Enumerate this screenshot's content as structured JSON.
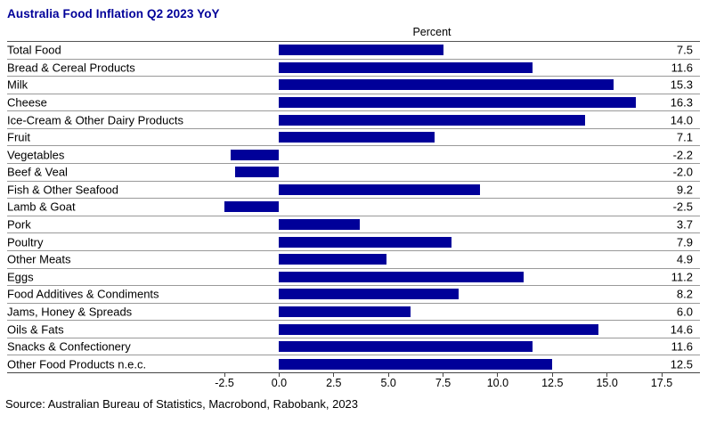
{
  "title": "Australia Food Inflation Q2 2023 YoY",
  "source": "Source: Australian Bureau of Statistics, Macrobond, Rabobank, 2023",
  "colors": {
    "bar": "#000099",
    "title": "#000099"
  },
  "chart_data": {
    "type": "bar",
    "orientation": "horizontal",
    "title": "Australia Food Inflation Q2 2023 YoY",
    "axis_title": "Percent",
    "xlabel": "Percent",
    "ylabel": "",
    "grid": false,
    "legend": false,
    "xlim": [
      -2.5,
      17.5
    ],
    "categories": [
      "Total Food",
      "Bread & Cereal Products",
      "Milk",
      "Cheese",
      "Ice-Cream & Other Dairy Products",
      "Fruit",
      "Vegetables",
      "Beef & Veal",
      "Fish & Other Seafood",
      "Lamb & Goat",
      "Pork",
      "Poultry",
      "Other Meats",
      "Eggs",
      "Food Additives & Condiments",
      "Jams, Honey & Spreads",
      "Oils & Fats",
      "Snacks & Confectionery",
      "Other Food Products n.e.c."
    ],
    "values": [
      7.5,
      11.6,
      15.3,
      16.3,
      14.0,
      7.1,
      -2.2,
      -2.0,
      9.2,
      -2.5,
      3.7,
      7.9,
      4.9,
      11.2,
      8.2,
      6.0,
      14.6,
      11.6,
      12.5
    ],
    "value_labels": [
      "7.5",
      "11.6",
      "15.3",
      "16.3",
      "14.0",
      "7.1",
      "-2.2",
      "-2.0",
      "9.2",
      "-2.5",
      "3.7",
      "7.9",
      "4.9",
      "11.2",
      "8.2",
      "6.0",
      "14.6",
      "11.6",
      "12.5"
    ],
    "xtick_labels": [
      "-2.5",
      "0.0",
      "2.5",
      "5.0",
      "7.5",
      "10.0",
      "12.5",
      "15.0",
      "17.5"
    ]
  }
}
